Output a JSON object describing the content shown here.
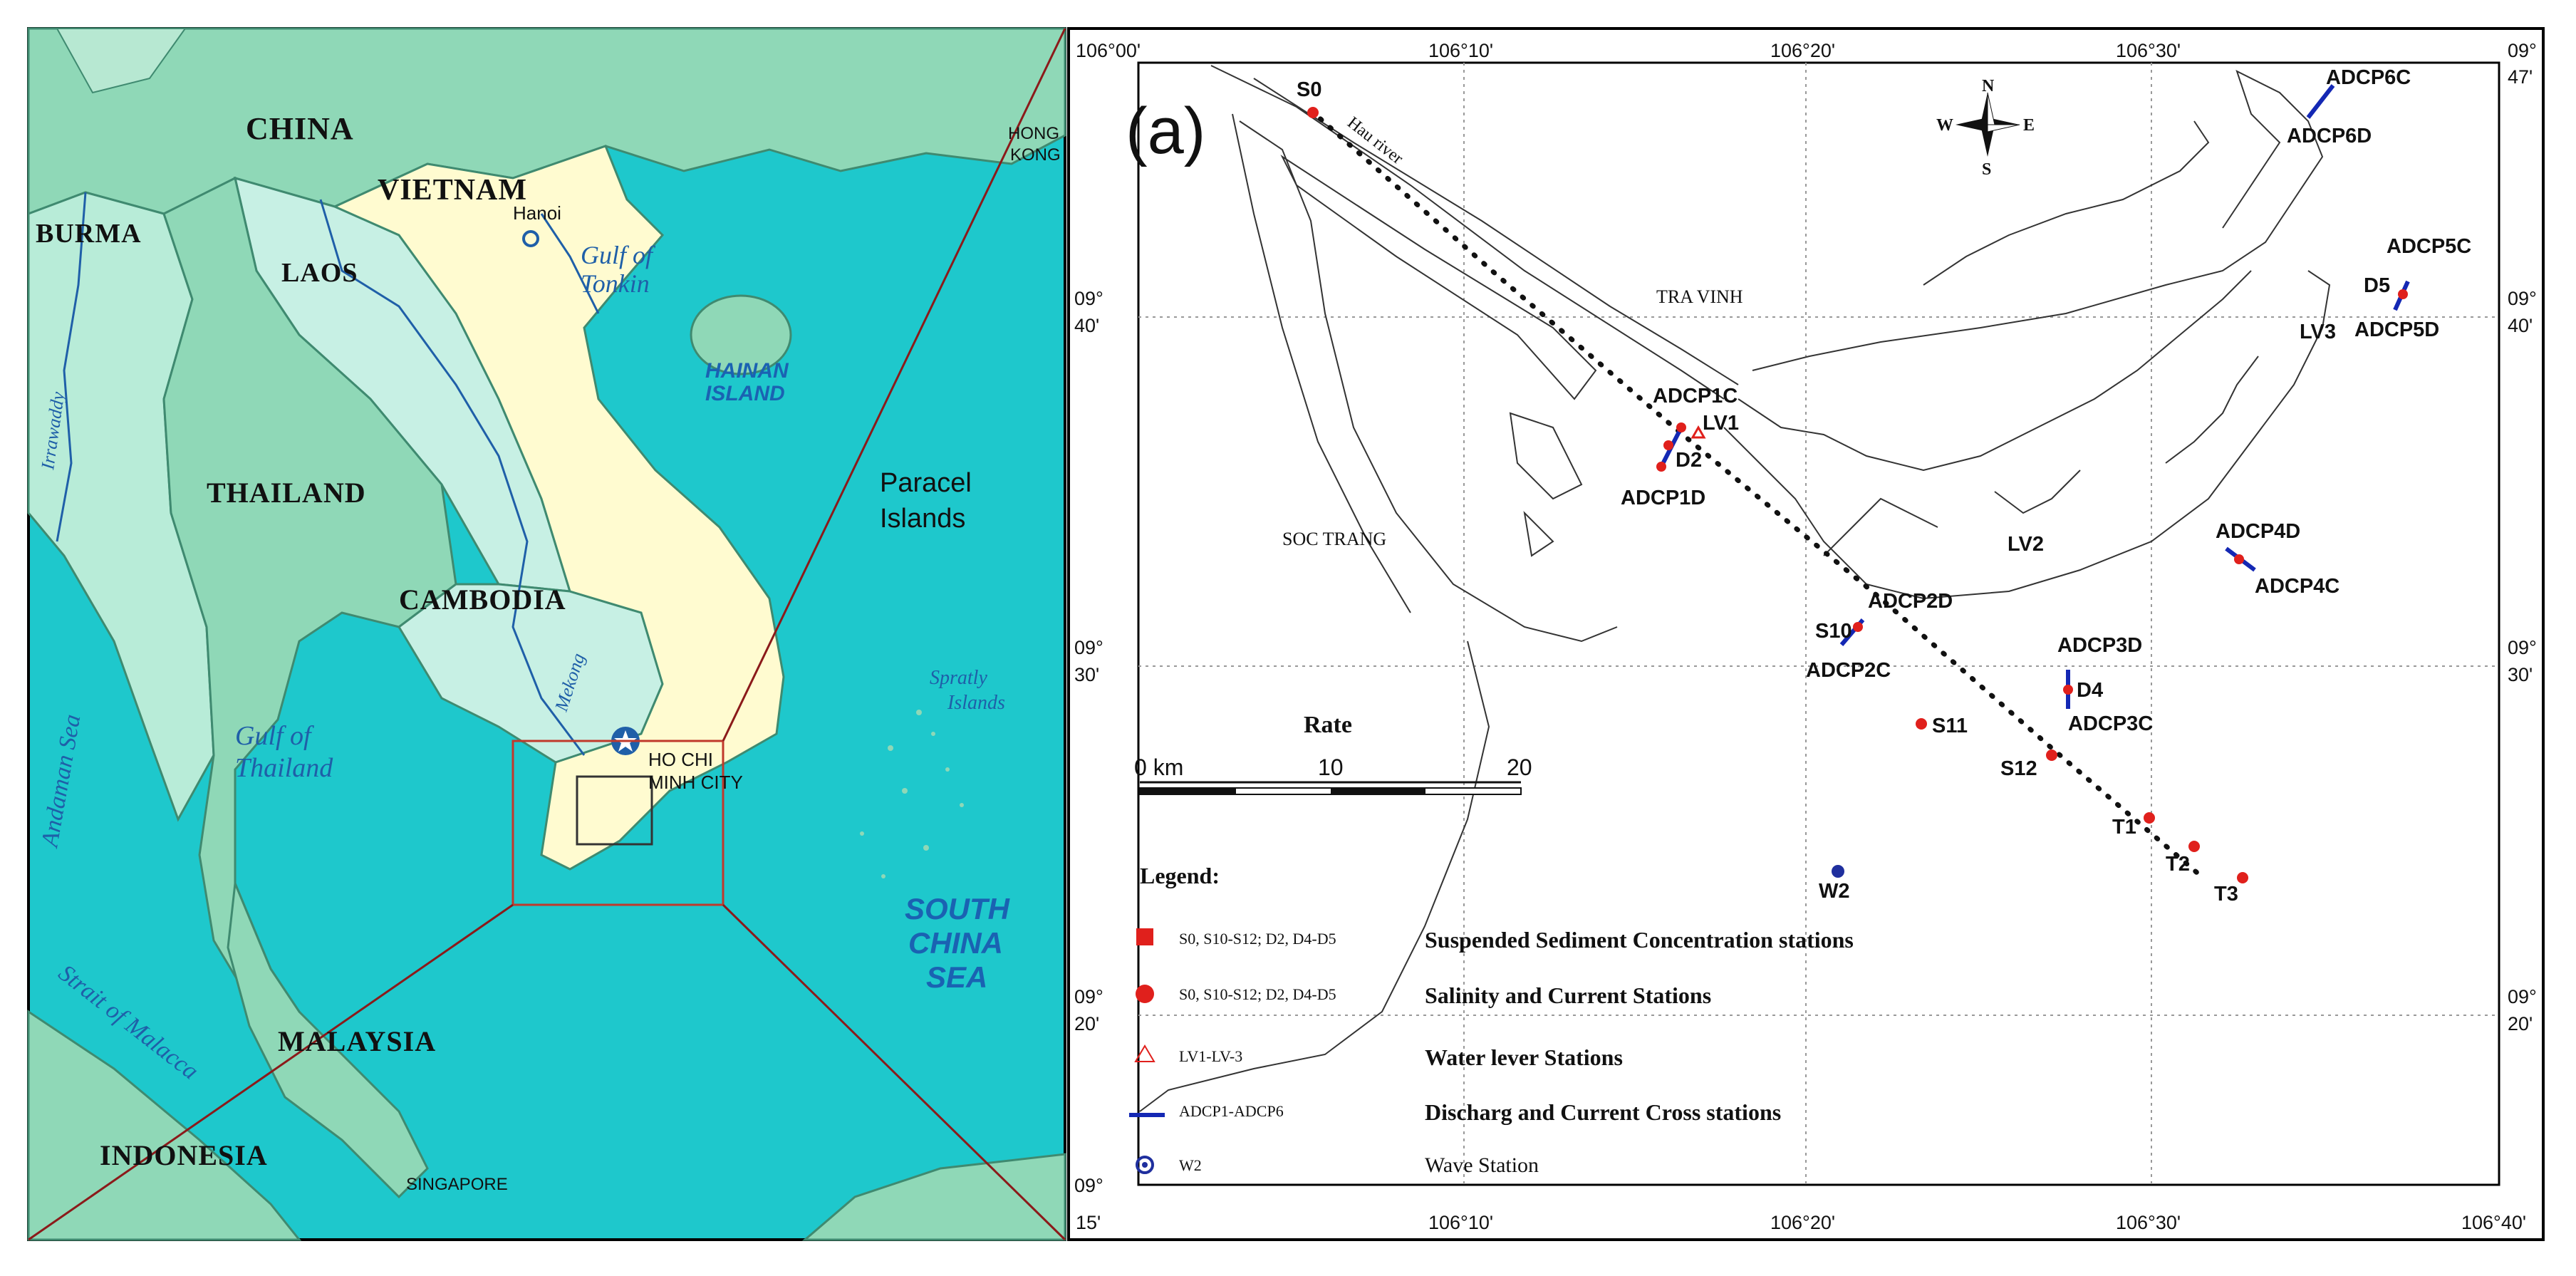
{
  "left_map": {
    "countries": [
      "CHINA",
      "VIETNAM",
      "BURMA",
      "LAOS",
      "THAILAND",
      "CAMBODIA",
      "MALAYSIA",
      "INDONESIA"
    ],
    "city_labels": [
      "Hanoi",
      "HONG",
      "KONG",
      "HO CHI",
      "MINH CITY",
      "SINGAPORE"
    ],
    "water_labels": [
      "Gulf of",
      "Tonkin",
      "Gulf of",
      "Thailand",
      "Andaman Sea",
      "Strait of Malacca",
      "Irrawaddy",
      "Mekong"
    ],
    "islands": [
      "HAINAN",
      "ISLAND",
      "Paracel",
      "Islands",
      "Spratly",
      "Islands"
    ],
    "sea_label": [
      "SOUTH",
      "CHINA",
      "SEA"
    ]
  },
  "right_map": {
    "panel_label": "(a)",
    "top_coords": [
      "106°00'",
      "106°10'",
      "106°20'",
      "106°30'",
      "09°"
    ],
    "bottom_coords": [
      "15'",
      "106°10'",
      "106°20'",
      "106°30'",
      "106°40'"
    ],
    "left_coords": [
      [
        "09°",
        "40'"
      ],
      [
        "09°",
        "30'"
      ],
      [
        "09°",
        "20'"
      ],
      [
        "09°"
      ]
    ],
    "right_coords": [
      "47'",
      [
        "09°",
        "40'"
      ],
      [
        "09°",
        "30'"
      ],
      [
        "09°",
        "20'"
      ]
    ],
    "compass": [
      "N",
      "S",
      "E",
      "W"
    ],
    "region_labels": [
      "TRA VINH",
      "SOC TRANG"
    ],
    "river_label": "Hau river",
    "stations": [
      "S0",
      "S10",
      "S11",
      "S12",
      "T1",
      "T2",
      "T3",
      "W2",
      "D2",
      "D4",
      "D5",
      "LV1",
      "LV2",
      "LV3"
    ],
    "adcp_labels": [
      "ADCP1C",
      "ADCP1D",
      "ADCP2D",
      "ADCP2C",
      "ADCP3D",
      "ADCP3C",
      "ADCP4D",
      "ADCP4C",
      "ADCP5C",
      "ADCP5D",
      "ADCP6C",
      "ADCP6D"
    ],
    "scale": {
      "title": "Rate",
      "ticks": [
        "0 km",
        "10",
        "20"
      ]
    },
    "legend": {
      "title": "Legend:",
      "items": [
        {
          "code": "S0, S10-S12; D2, D4-D5",
          "desc": "Suspended Sediment Concentration stations"
        },
        {
          "code": "S0, S10-S12; D2, D4-D5",
          "desc": "Salinity and Current Stations"
        },
        {
          "code": "LV1-LV-3",
          "desc": "Water lever Stations"
        },
        {
          "code": "ADCP1-ADCP6",
          "desc": "Discharg and Current Cross stations"
        },
        {
          "code": "W2",
          "desc": "Wave Station"
        }
      ]
    }
  },
  "colors": {
    "sea": "#1ec8cc",
    "land_neighbors": "#8fd8b7",
    "land_vietnam": "#fffbd0",
    "land_light": "#c7f0e4",
    "station_red": "#e0201c",
    "adcp_blue": "#1428b4",
    "wave_blue": "#1f2f9e"
  }
}
